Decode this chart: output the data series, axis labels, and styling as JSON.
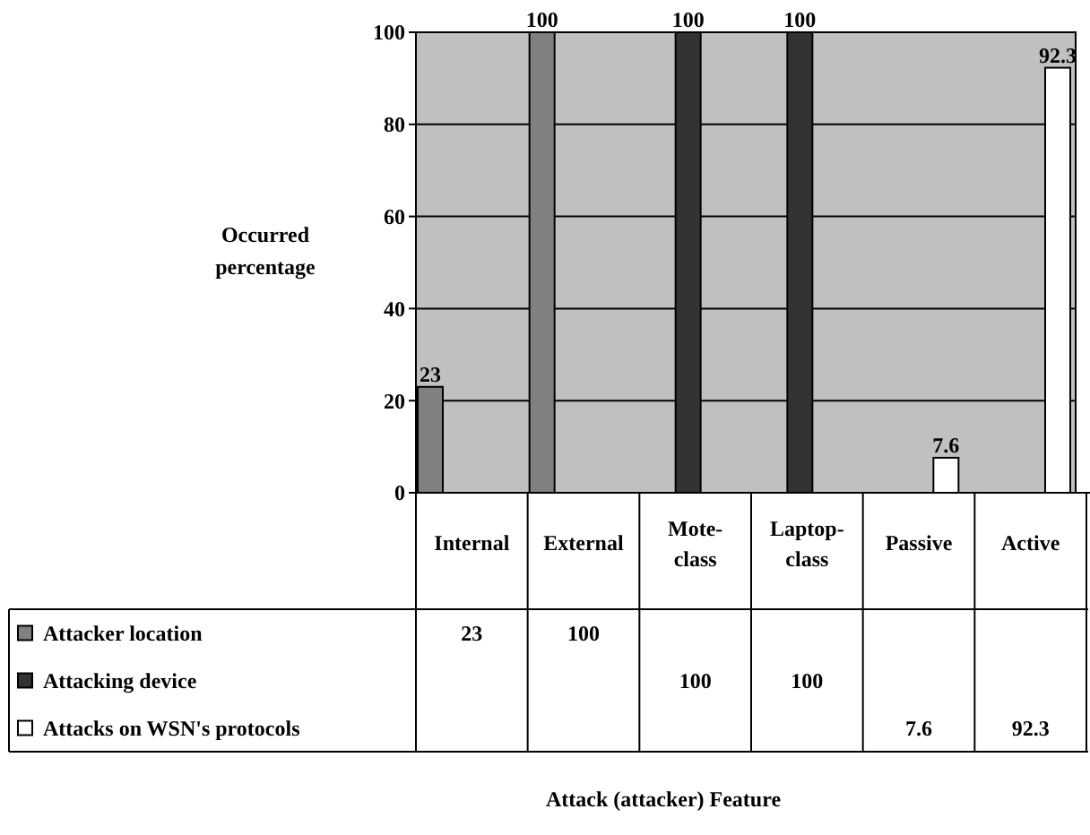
{
  "chart_data": {
    "type": "bar",
    "ylabel": "Occurred percentage",
    "categories": [
      "Internal",
      "External",
      "Mote-class",
      "Laptop-class",
      "Passive",
      "Active"
    ],
    "series": [
      {
        "name": "Attacker location",
        "color": "#808080",
        "values": [
          23,
          100,
          null,
          null,
          null,
          null
        ],
        "value_labels": [
          "23",
          "100",
          null,
          null,
          null,
          null
        ]
      },
      {
        "name": "Attacking device",
        "color": "#333333",
        "values": [
          null,
          null,
          100,
          100,
          null,
          null
        ],
        "value_labels": [
          null,
          null,
          "100",
          "100",
          null,
          null
        ]
      },
      {
        "name": "Attacks on WSN's protocols",
        "color": "#ffffff",
        "values": [
          null,
          null,
          null,
          null,
          7.6,
          92.3
        ],
        "value_labels": [
          null,
          null,
          null,
          null,
          "7.6",
          "92.3"
        ]
      }
    ],
    "ylim": [
      0,
      100
    ],
    "yticks": [
      0,
      20,
      40,
      60,
      80,
      100
    ],
    "grid": "y",
    "legend": "bottom",
    "annotations": [
      "23",
      "100",
      "100",
      "100",
      "7.6",
      "92.3",
      "Attack (attacker) Feature"
    ]
  }
}
